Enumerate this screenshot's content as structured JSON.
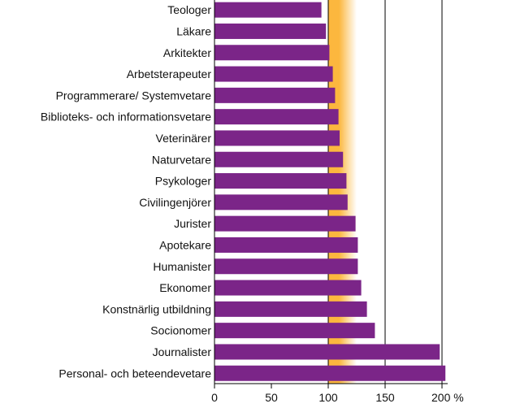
{
  "chart_data": {
    "type": "bar",
    "orientation": "horizontal",
    "title": "",
    "xlabel": "",
    "ylabel": "",
    "categories": [
      "Teologer",
      "Läkare",
      "Arkitekter",
      "Arbetsterapeuter",
      "Programmerare/ Systemvetare",
      "Biblioteks- och informationsvetare",
      "Veterinärer",
      "Naturvetare",
      "Psykologer",
      "Civilingenjörer",
      "Jurister",
      "Apotekare",
      "Humanister",
      "Ekonomer",
      "Konstnärlig utbildning",
      "Socionomer",
      "Journalister",
      "Personal- och beteendevetare"
    ],
    "values": [
      94,
      98,
      101,
      104,
      106,
      109,
      110,
      113,
      116,
      117,
      124,
      126,
      126,
      129,
      134,
      141,
      198,
      203
    ],
    "xlim": [
      0,
      205
    ],
    "xticks": [
      0,
      50,
      100,
      150,
      200
    ],
    "xtick_labels": [
      "0",
      "50",
      "100",
      "150",
      "200 %"
    ],
    "reference_lines": [
      100,
      150,
      200
    ],
    "highlight_band": [
      100,
      125
    ],
    "grid": false,
    "colors": {
      "bar": "#7b2588",
      "band_inner": "#fcb73e",
      "band_outer": "#ffffff",
      "axis": "#000000"
    }
  }
}
